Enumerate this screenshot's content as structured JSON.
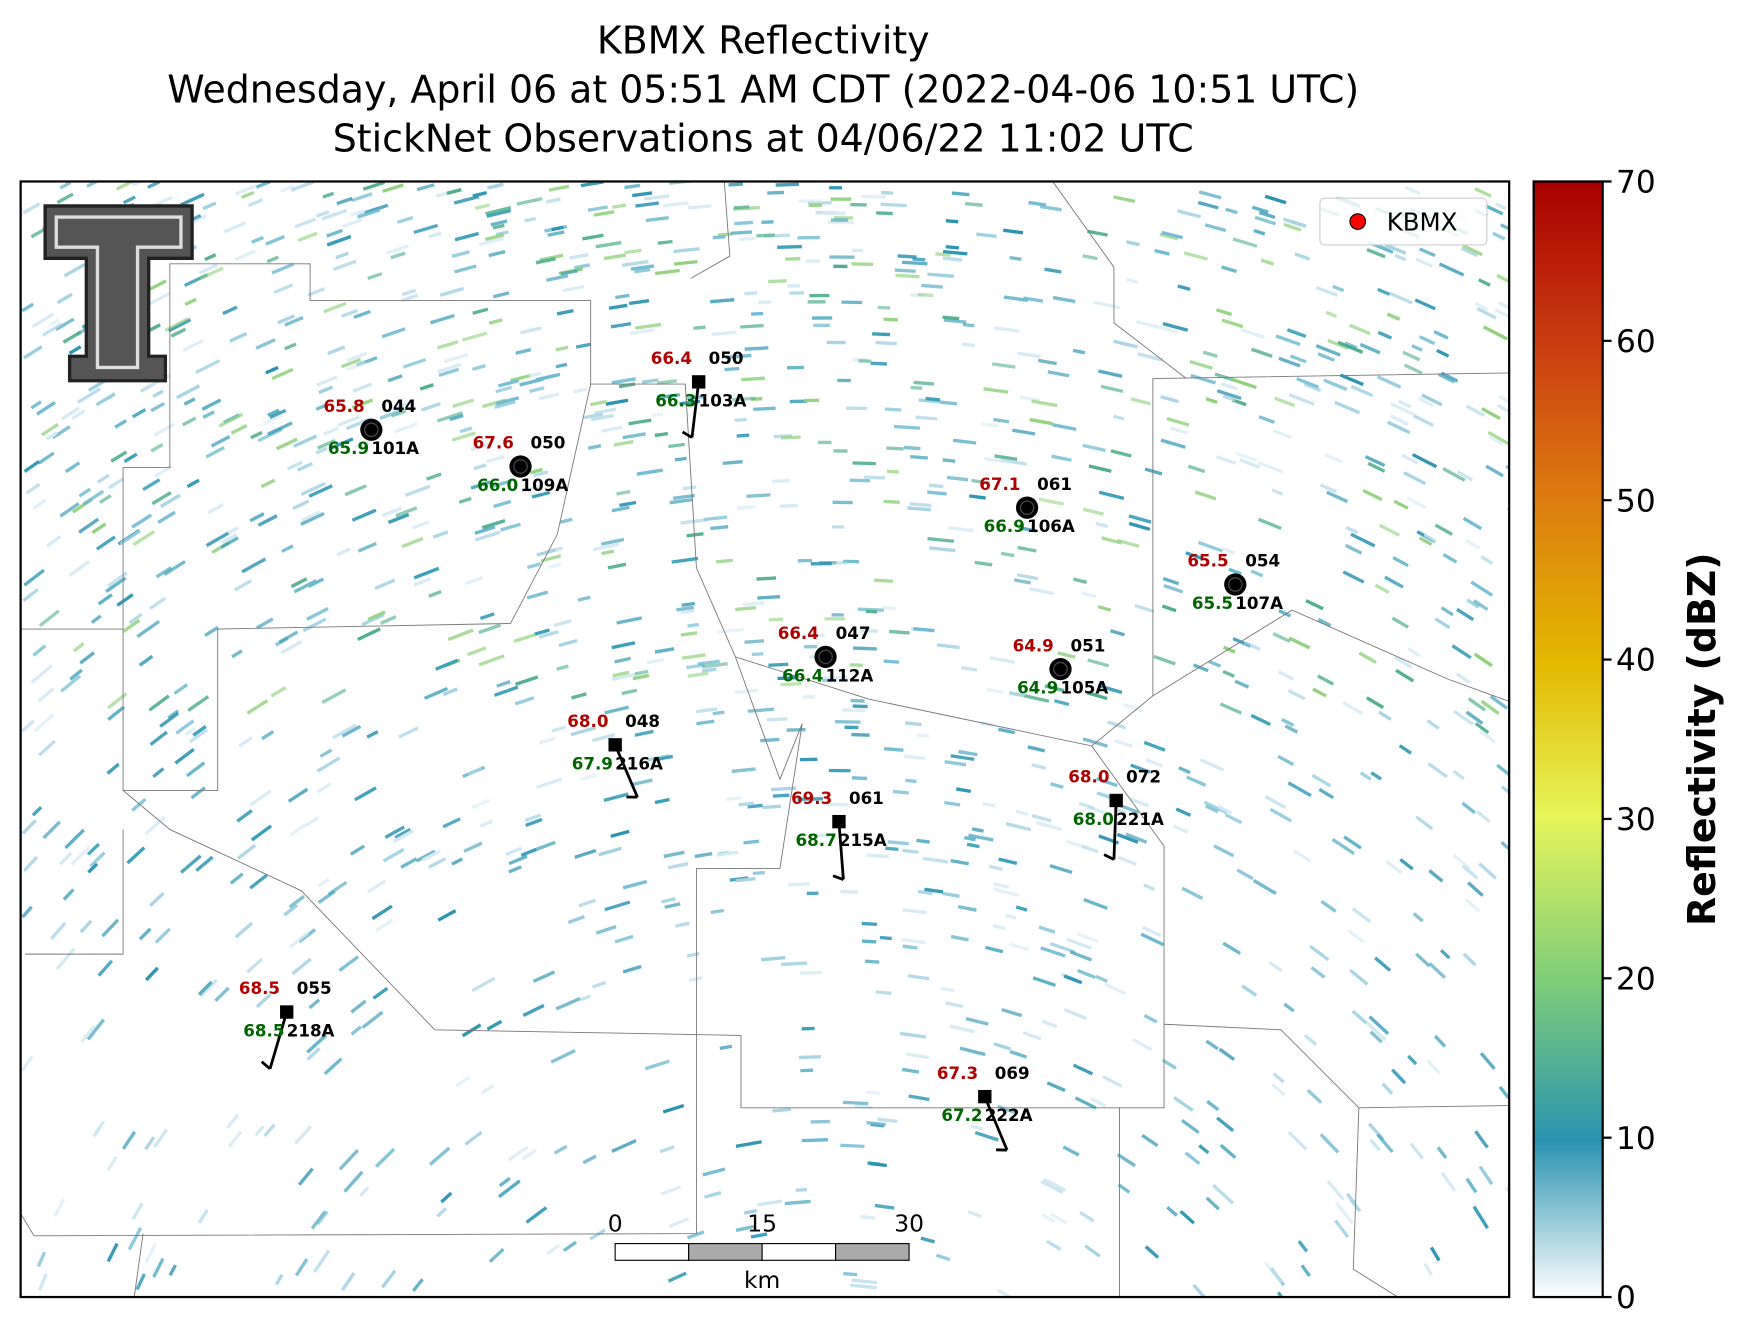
{
  "header": {
    "title_lines": [
      "KBMX Reflectivity",
      "Wednesday, April 06 at 05:51 AM CDT (2022-04-06 10:51 UTC)",
      "StickNet Observations at 04/06/22 11:02 UTC"
    ]
  },
  "legend": {
    "label": "KBMX",
    "color": "#ff0000"
  },
  "colorbar": {
    "label": "Reflectivity (dBZ)",
    "lim": [
      0,
      70
    ],
    "ticks": [
      0,
      10,
      20,
      30,
      40,
      50,
      60,
      70
    ]
  },
  "scale_bar": {
    "ticks": [
      "0",
      "15",
      "30"
    ],
    "unit": "km"
  },
  "stations": [
    {
      "id": "101A",
      "temperature": "65.8",
      "dewpoint": "65.9",
      "code": "044"
    },
    {
      "id": "109A",
      "temperature": "67.6",
      "dewpoint": "66.0",
      "code": "050"
    },
    {
      "id": "103A",
      "temperature": "66.4",
      "dewpoint": "66.3",
      "code": "050"
    },
    {
      "id": "106A",
      "temperature": "67.1",
      "dewpoint": "66.9",
      "code": "061"
    },
    {
      "id": "107A",
      "temperature": "65.5",
      "dewpoint": "65.5",
      "code": "054"
    },
    {
      "id": "112A",
      "temperature": "66.4",
      "dewpoint": "66.4",
      "code": "047"
    },
    {
      "id": "105A",
      "temperature": "64.9",
      "dewpoint": "64.9",
      "code": "051"
    },
    {
      "id": "216A",
      "temperature": "68.0",
      "dewpoint": "67.9",
      "code": "048"
    },
    {
      "id": "215A",
      "temperature": "69.3",
      "dewpoint": "68.7",
      "code": "061"
    },
    {
      "id": "221A",
      "temperature": "68.0",
      "dewpoint": "68.0",
      "code": "072"
    },
    {
      "id": "218A",
      "temperature": "68.5",
      "dewpoint": "68.5",
      "code": "055"
    },
    {
      "id": "222A",
      "temperature": "67.3",
      "dewpoint": "67.2",
      "code": "069"
    }
  ]
}
